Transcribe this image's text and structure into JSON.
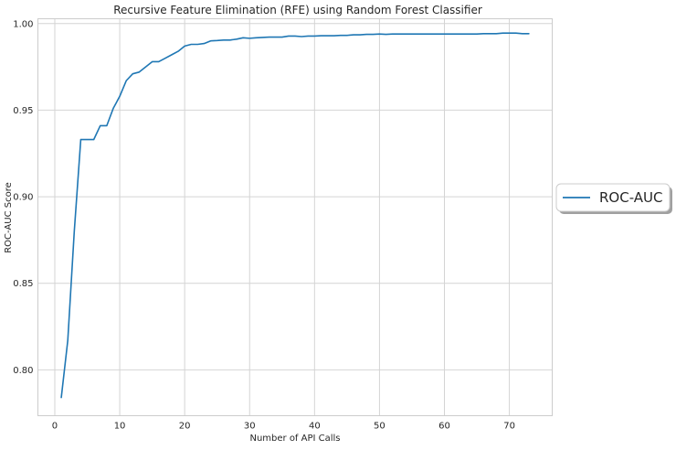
{
  "chart_data": {
    "type": "line",
    "title": "Recursive Feature Elimination (RFE) using Random Forest Classifier",
    "xlabel": "Number of API Calls",
    "ylabel": "ROC-AUC Score",
    "xlim": [
      -2.6,
      76.6
    ],
    "ylim": [
      0.7735,
      1.0028
    ],
    "xticks": [
      0,
      10,
      20,
      30,
      40,
      50,
      60,
      70
    ],
    "xtick_labels": [
      "0",
      "10",
      "20",
      "30",
      "40",
      "50",
      "60",
      "70"
    ],
    "yticks": [
      0.8,
      0.85,
      0.9,
      0.95,
      1.0
    ],
    "ytick_labels": [
      "0.80",
      "0.85",
      "0.90",
      "0.95",
      "1.00"
    ],
    "grid": true,
    "legend_position": "center-right outside",
    "colors": {
      "line": "#1f77b4",
      "grid": "#d4d4d4",
      "frame": "#cccccc"
    },
    "series": [
      {
        "name": "ROC-AUC",
        "x": [
          1,
          2,
          3,
          4,
          5,
          6,
          7,
          8,
          9,
          10,
          11,
          12,
          13,
          14,
          15,
          16,
          17,
          18,
          19,
          20,
          21,
          22,
          23,
          24,
          25,
          26,
          27,
          28,
          29,
          30,
          31,
          32,
          33,
          34,
          35,
          36,
          37,
          38,
          39,
          40,
          41,
          42,
          43,
          44,
          45,
          46,
          47,
          48,
          49,
          50,
          51,
          52,
          53,
          54,
          55,
          56,
          57,
          58,
          59,
          60,
          61,
          62,
          63,
          64,
          65,
          66,
          67,
          68,
          69,
          70,
          71,
          72,
          73
        ],
        "y": [
          0.784,
          0.817,
          0.88,
          0.933,
          0.933,
          0.933,
          0.941,
          0.941,
          0.951,
          0.958,
          0.967,
          0.971,
          0.972,
          0.975,
          0.978,
          0.978,
          0.98,
          0.982,
          0.984,
          0.987,
          0.988,
          0.988,
          0.9885,
          0.99,
          0.9902,
          0.9905,
          0.9905,
          0.991,
          0.9918,
          0.9915,
          0.9918,
          0.992,
          0.9922,
          0.9922,
          0.9922,
          0.9928,
          0.9928,
          0.9925,
          0.9928,
          0.9928,
          0.993,
          0.993,
          0.993,
          0.9932,
          0.9932,
          0.9935,
          0.9935,
          0.9938,
          0.9938,
          0.994,
          0.9938,
          0.994,
          0.994,
          0.994,
          0.994,
          0.994,
          0.994,
          0.994,
          0.994,
          0.994,
          0.994,
          0.994,
          0.994,
          0.994,
          0.994,
          0.9942,
          0.9942,
          0.9942,
          0.9945,
          0.9945,
          0.9945,
          0.9942,
          0.9942
        ]
      }
    ]
  }
}
